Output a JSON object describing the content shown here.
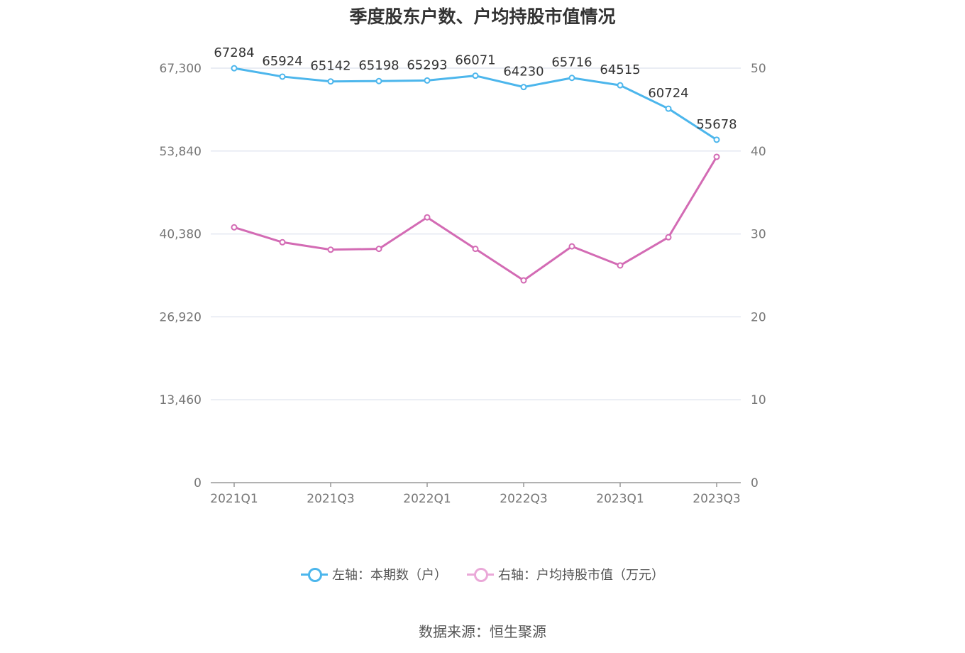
{
  "title": "季度股东户数、户均持股市值情况",
  "source": "数据来源：恒生聚源",
  "colors": {
    "left_series": "#4cb6ec",
    "right_series": "#d36bb4",
    "grid": "#e3e7f0",
    "axis": "#999999"
  },
  "chart_data": {
    "type": "line",
    "categories": [
      "2021Q1",
      "2021Q2",
      "2021Q3",
      "2021Q4",
      "2022Q1",
      "2022Q2",
      "2022Q3",
      "2022Q4",
      "2023Q1",
      "2023Q2",
      "2023Q3"
    ],
    "x_tick_labels": [
      "2021Q1",
      "2021Q3",
      "2022Q1",
      "2022Q3",
      "2023Q1",
      "2023Q3"
    ],
    "left_axis": {
      "ylim": [
        0,
        67300
      ],
      "ticks": [
        0,
        13460,
        26920,
        40380,
        53840,
        67300
      ],
      "tick_labels": [
        "0",
        "13,460",
        "26,920",
        "40,380",
        "53,840",
        "67,300"
      ]
    },
    "right_axis": {
      "ylim": [
        0,
        50
      ],
      "ticks": [
        0,
        10,
        20,
        30,
        40,
        50
      ],
      "tick_labels": [
        "0",
        "10",
        "20",
        "30",
        "40",
        "50"
      ]
    },
    "series": [
      {
        "name": "左轴：本期数（户）",
        "axis": "left",
        "values": [
          67284,
          65924,
          65142,
          65198,
          65293,
          66071,
          64230,
          65716,
          64515,
          60724,
          55678
        ],
        "labels": [
          "67284",
          "65924",
          "65142",
          "65198",
          "65293",
          "66071",
          "64230",
          "65716",
          "64515",
          "60724",
          "55678"
        ]
      },
      {
        "name": "右轴：户均持股市值（万元）",
        "axis": "right",
        "values": [
          30.8,
          29.0,
          28.1,
          28.2,
          32.0,
          28.2,
          24.4,
          28.5,
          26.2,
          29.6,
          39.3
        ]
      }
    ],
    "grid": true,
    "legend": "bottom"
  }
}
